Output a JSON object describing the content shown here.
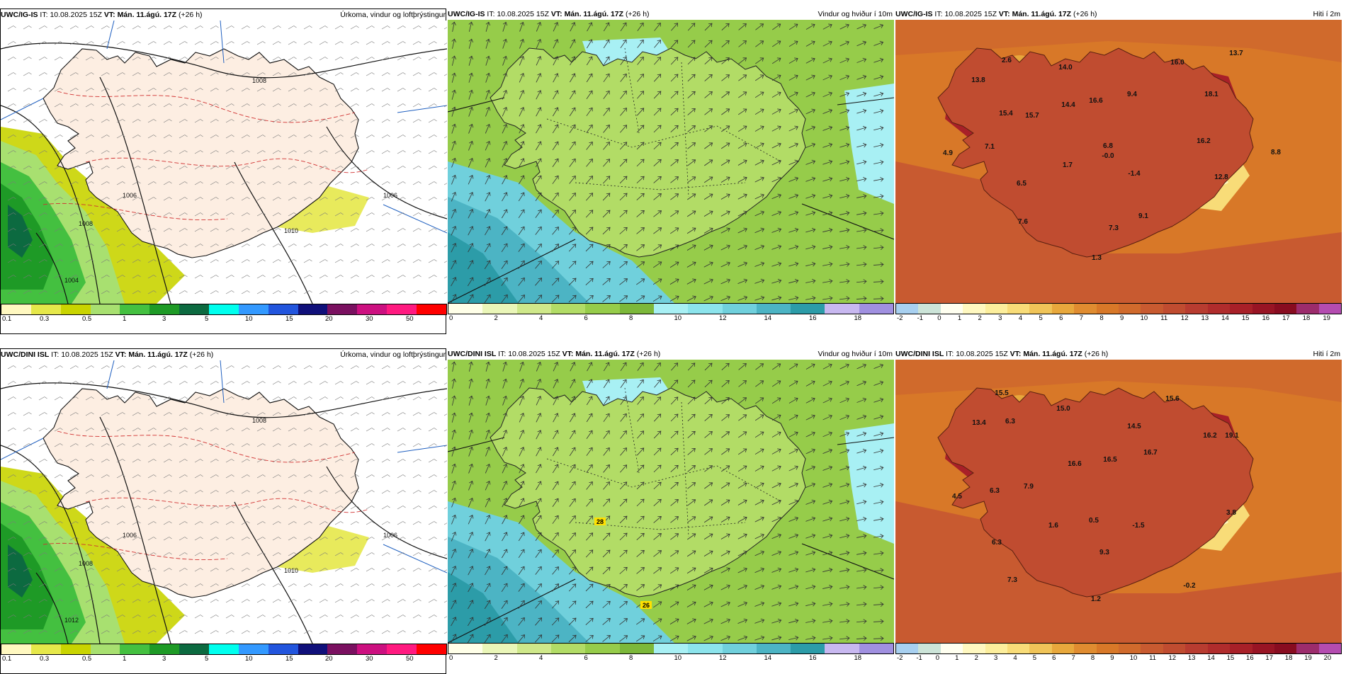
{
  "panels": [
    {
      "model": "UWC/IG-IS",
      "it_label": "IT:",
      "it_value": "10.08.2025 15Z",
      "vt_label": "VT:",
      "vt_value": "Mán. 11.ágú. 17Z",
      "lead": "(+26 h)",
      "title": "Úrkoma, vindur og loftþrýstingur",
      "colorbar": [
        "#fff8c0",
        "#e6e84a",
        "#c9d400",
        "#a8e070",
        "#44c040",
        "#1e9a26",
        "#0c6a40",
        "#00ffee",
        "#3399ff",
        "#2255dd",
        "#10107a",
        "#7a1060",
        "#cc1080",
        "#ff1a80",
        "#ff0000"
      ],
      "ticks": [
        "0.1",
        "0.3",
        "0.5",
        "1",
        "3",
        "5",
        "10",
        "15",
        "20",
        "30",
        "50"
      ],
      "isobars": [
        "1008",
        "1006",
        "1010",
        "1008",
        "1006",
        "1004"
      ]
    },
    {
      "model": "UWC/IG-IS",
      "it_label": "IT:",
      "it_value": "10.08.2025 15Z",
      "vt_label": "VT:",
      "vt_value": "Mán. 11.ágú. 17Z",
      "lead": "(+26 h)",
      "title": "Vindur og hviður í 10m",
      "colorbar": [
        "#ffffe8",
        "#eaf6b8",
        "#cfe88a",
        "#b2dc66",
        "#96cc4a",
        "#7cb83a",
        "#a8f0f4",
        "#8ce4ec",
        "#70d0dc",
        "#4cb4c4",
        "#2c9ca8",
        "#c8b8f0",
        "#a090e0"
      ],
      "ticks": [
        "0",
        "2",
        "4",
        "6",
        "8",
        "10",
        "12",
        "14",
        "16",
        "18"
      ],
      "labels": []
    },
    {
      "model": "UWC/IG-IS",
      "it_label": "IT:",
      "it_value": "10.08.2025 15Z",
      "vt_label": "VT:",
      "vt_value": "Mán. 11.ágú. 17Z",
      "lead": "(+26 h)",
      "title": "Hiti í 2m",
      "colorbar": [
        "#a8d0f0",
        "#cce4d8",
        "#fffff0",
        "#fff8c0",
        "#fcee9c",
        "#f8dc78",
        "#f0c458",
        "#e8a83c",
        "#e08c30",
        "#d87828",
        "#d06a2c",
        "#c85a30",
        "#c04c30",
        "#b83c30",
        "#b02c2c",
        "#a82028",
        "#981424",
        "#880c20",
        "#9c2c6c",
        "#b44cb0"
      ],
      "ticks": [
        "-2",
        "-1",
        "0",
        "1",
        "2",
        "3",
        "4",
        "5",
        "6",
        "7",
        "8",
        "9",
        "10",
        "11",
        "12",
        "13",
        "14",
        "15",
        "16",
        "17",
        "18",
        "19"
      ],
      "temps": [
        "2.6",
        "13.8",
        "14.0",
        "16.0",
        "13.7",
        "15.4",
        "15.7",
        "14.4",
        "16.6",
        "9.4",
        "18.1",
        "7.1",
        "4.9",
        "6.8",
        "16.2",
        "1.7",
        "-0.0",
        "12.8",
        "8.8",
        "6.5",
        "-1.4",
        "9.1",
        "7.6",
        "7.3",
        "1.3"
      ]
    },
    {
      "model": "UWC/DINI ISL",
      "it_label": "IT:",
      "it_value": "10.08.2025 15Z",
      "vt_label": "VT:",
      "vt_value": "Mán. 11.ágú. 17Z",
      "lead": "(+26 h)",
      "title": "Úrkoma, vindur og loftþrýstingur",
      "colorbar": [
        "#fff8c0",
        "#e6e84a",
        "#c9d400",
        "#a8e070",
        "#44c040",
        "#1e9a26",
        "#0c6a40",
        "#00ffee",
        "#3399ff",
        "#2255dd",
        "#10107a",
        "#7a1060",
        "#cc1080",
        "#ff1a80",
        "#ff0000"
      ],
      "ticks": [
        "0.1",
        "0.3",
        "0.5",
        "1",
        "3",
        "5",
        "10",
        "15",
        "20",
        "30",
        "50"
      ],
      "isobars": [
        "1008",
        "1006",
        "1010",
        "1008",
        "1006",
        "1012"
      ]
    },
    {
      "model": "UWC/DINI ISL",
      "it_label": "IT:",
      "it_value": "10.08.2025 15Z",
      "vt_label": "VT:",
      "vt_value": "Mán. 11.ágú. 17Z",
      "lead": "(+26 h)",
      "title": "Vindur og hviður í 10m",
      "colorbar": [
        "#ffffe8",
        "#eaf6b8",
        "#cfe88a",
        "#b2dc66",
        "#96cc4a",
        "#7cb83a",
        "#a8f0f4",
        "#8ce4ec",
        "#70d0dc",
        "#4cb4c4",
        "#2c9ca8",
        "#c8b8f0",
        "#a090e0"
      ],
      "ticks": [
        "0",
        "2",
        "4",
        "6",
        "8",
        "10",
        "12",
        "14",
        "16",
        "18"
      ],
      "labels": [
        "28",
        "26"
      ]
    },
    {
      "model": "UWC/DINI ISL",
      "it_label": "IT:",
      "it_value": "10.08.2025 15Z",
      "vt_label": "VT:",
      "vt_value": "Mán. 11.ágú. 17Z",
      "lead": "(+26 h)",
      "title": "Hiti í 2m",
      "colorbar": [
        "#a8d0f0",
        "#cce4d8",
        "#fffff0",
        "#fff8c0",
        "#fcee9c",
        "#f8dc78",
        "#f0c458",
        "#e8a83c",
        "#e08c30",
        "#d87828",
        "#d06a2c",
        "#c85a30",
        "#c04c30",
        "#b83c30",
        "#b02c2c",
        "#a82028",
        "#981424",
        "#880c20",
        "#9c2c6c",
        "#b44cb0"
      ],
      "ticks": [
        "-2",
        "-1",
        "0",
        "1",
        "2",
        "3",
        "4",
        "5",
        "6",
        "7",
        "8",
        "9",
        "10",
        "11",
        "12",
        "13",
        "14",
        "15",
        "16",
        "17",
        "18",
        "19",
        "20"
      ],
      "temps": [
        "15.5",
        "13.4",
        "6.3",
        "15.0",
        "15.6",
        "14.5",
        "16.2",
        "16.6",
        "16.5",
        "16.7",
        "19.1",
        "7.9",
        "6.3",
        "4.5",
        "1.6",
        "0.5",
        "-1.5",
        "3.8",
        "6.3",
        "9.3",
        "7.3",
        "-0.2",
        "1.2"
      ]
    }
  ]
}
